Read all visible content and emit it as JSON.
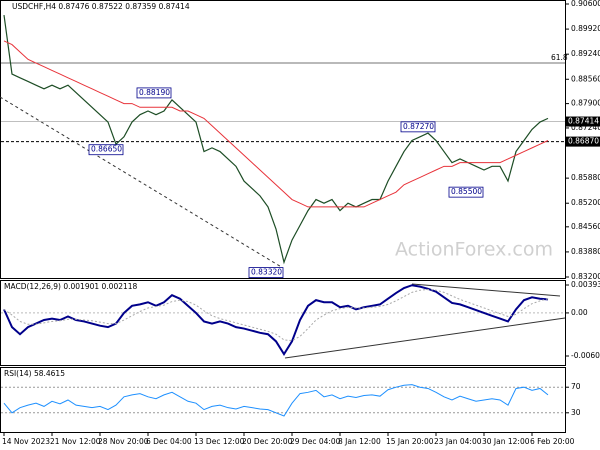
{
  "chart_data": [
    {
      "type": "line",
      "title": "USDCHF,H4 0.87476 0.87522 0.87359 0.87414",
      "watermark": "ActionForex.com",
      "ylim": [
        0.832,
        0.906
      ],
      "yticks": [
        {
          "value": 0.906,
          "label": "0.90600"
        },
        {
          "value": 0.8992,
          "label": "0.89920"
        },
        {
          "value": 0.8924,
          "label": "0.89240"
        },
        {
          "value": 0.8856,
          "label": "0.88560"
        },
        {
          "value": 0.879,
          "label": "0.87900"
        },
        {
          "value": 0.8724,
          "label": "0.87240"
        },
        {
          "value": 0.8588,
          "label": "0.85880"
        },
        {
          "value": 0.852,
          "label": "0.85200"
        },
        {
          "value": 0.8456,
          "label": "0.84560"
        },
        {
          "value": 0.8388,
          "label": "0.83880"
        },
        {
          "value": 0.832,
          "label": "0.83200"
        }
      ],
      "xticks": [
        {
          "value": 0,
          "label": "14 Nov 2023"
        },
        {
          "value": 6,
          "label": "21 Nov 12:00"
        },
        {
          "value": 12,
          "label": "28 Nov 20:00"
        },
        {
          "value": 18,
          "label": "6 Dec 04:00"
        },
        {
          "value": 24,
          "label": "13 Dec 12:00"
        },
        {
          "value": 30,
          "label": "20 Dec 20:00"
        },
        {
          "value": 36,
          "label": "29 Dec 04:00"
        },
        {
          "value": 42,
          "label": "8 Jan 12:00"
        },
        {
          "value": 48,
          "label": "15 Jan 20:00"
        },
        {
          "value": 54,
          "label": "23 Jan 04:00"
        },
        {
          "value": 60,
          "label": "30 Jan 12:00"
        },
        {
          "value": 66,
          "label": "6 Feb 20:00"
        }
      ],
      "current_price": {
        "value": 0.87414,
        "label": "0.87414"
      },
      "level": {
        "value": 0.8687,
        "label": "0.86870"
      },
      "fib": {
        "value": 0.89,
        "label": "61.8"
      },
      "annotations": [
        {
          "value": 0.8819,
          "label": "0.88190",
          "x": 21
        },
        {
          "value": 0.8665,
          "label": "0.86650",
          "x": 15
        },
        {
          "value": 0.8332,
          "label": "0.83320",
          "x": 35
        },
        {
          "value": 0.8727,
          "label": "0.87270",
          "x": 54
        },
        {
          "value": 0.855,
          "label": "0.85500",
          "x": 60
        }
      ],
      "series": [
        {
          "color": "#1d4d25",
          "width": 1.2,
          "values": [
            0.903,
            0.887,
            0.886,
            0.885,
            0.884,
            0.883,
            0.884,
            0.883,
            0.884,
            0.882,
            0.88,
            0.878,
            0.876,
            0.874,
            0.868,
            0.87,
            0.874,
            0.876,
            0.877,
            0.876,
            0.877,
            0.88,
            0.878,
            0.876,
            0.874,
            0.866,
            0.867,
            0.866,
            0.864,
            0.862,
            0.858,
            0.856,
            0.854,
            0.851,
            0.845,
            0.836,
            0.842,
            0.846,
            0.85,
            0.853,
            0.852,
            0.853,
            0.85,
            0.852,
            0.851,
            0.852,
            0.853,
            0.853,
            0.858,
            0.862,
            0.866,
            0.869,
            0.87,
            0.871,
            0.869,
            0.866,
            0.863,
            0.864,
            0.863,
            0.862,
            0.861,
            0.862,
            0.862,
            0.858,
            0.866,
            0.869,
            0.872,
            0.874,
            0.875
          ]
        },
        {
          "color": "#e8333a",
          "width": 1,
          "values": [
            0.896,
            0.895,
            0.893,
            0.891,
            0.89,
            0.889,
            0.888,
            0.887,
            0.886,
            0.885,
            0.884,
            0.883,
            0.882,
            0.881,
            0.88,
            0.879,
            0.879,
            0.878,
            0.878,
            0.878,
            0.878,
            0.878,
            0.877,
            0.877,
            0.876,
            0.875,
            0.873,
            0.871,
            0.869,
            0.867,
            0.865,
            0.863,
            0.861,
            0.859,
            0.857,
            0.855,
            0.853,
            0.852,
            0.851,
            0.851,
            0.851,
            0.851,
            0.851,
            0.851,
            0.851,
            0.851,
            0.852,
            0.853,
            0.854,
            0.855,
            0.857,
            0.858,
            0.859,
            0.86,
            0.861,
            0.862,
            0.862,
            0.863,
            0.863,
            0.863,
            0.863,
            0.863,
            0.863,
            0.864,
            0.865,
            0.866,
            0.867,
            0.868,
            0.869
          ]
        }
      ]
    },
    {
      "type": "line",
      "title": "MACD(12,26,9) 0.001901 0.002118",
      "ylim": [
        -0.006068,
        0.003933
      ],
      "yticks": [
        0.003933,
        {
          "value": 0,
          "label": "0.00"
        },
        -0.006068
      ],
      "series": [
        {
          "color": "#00008b",
          "width": 2,
          "values": [
            0.0005,
            -0.002,
            -0.003,
            -0.002,
            -0.0015,
            -0.001,
            -0.0008,
            -0.001,
            -0.0005,
            -0.001,
            -0.0012,
            -0.0015,
            -0.0018,
            -0.002,
            -0.0015,
            0,
            0.001,
            0.0012,
            0.0015,
            0.001,
            0.0015,
            0.0025,
            0.002,
            0.001,
            0,
            -0.0012,
            -0.0015,
            -0.0012,
            -0.0015,
            -0.002,
            -0.0022,
            -0.0025,
            -0.0028,
            -0.003,
            -0.004,
            -0.0058,
            -0.004,
            -0.001,
            0.001,
            0.0018,
            0.0015,
            0.0015,
            0.0008,
            0.001,
            0.0005,
            0.0008,
            0.001,
            0.0012,
            0.002,
            0.0028,
            0.0035,
            0.0039,
            0.0037,
            0.0034,
            0.003,
            0.0022,
            0.0014,
            0.0012,
            0.0008,
            0.0004,
            0,
            -0.0004,
            -0.0008,
            -0.0012,
            0.0005,
            0.0018,
            0.0022,
            0.002,
            0.0019
          ]
        },
        {
          "color": "#a9a9a9",
          "width": 1,
          "dash": true,
          "values": [
            0.0005,
            -0.0003,
            -0.0012,
            -0.0016,
            -0.0016,
            -0.0014,
            -0.0012,
            -0.0011,
            -0.0009,
            -0.0009,
            -0.001,
            -0.0011,
            -0.0013,
            -0.0015,
            -0.0015,
            -0.001,
            -0.0004,
            0.0002,
            0.0007,
            0.0009,
            0.0011,
            0.0016,
            0.0018,
            0.0016,
            0.0011,
            0.0003,
            -0.0004,
            -0.0008,
            -0.0011,
            -0.0014,
            -0.0017,
            -0.002,
            -0.0023,
            -0.0026,
            -0.003,
            -0.0038,
            -0.0039,
            -0.0033,
            -0.0022,
            -0.001,
            -0.0003,
            0.0003,
            0.0006,
            0.0008,
            0.0007,
            0.0007,
            0.0008,
            0.0009,
            0.0012,
            0.0017,
            0.0023,
            0.0029,
            0.0032,
            0.0033,
            0.0032,
            0.0029,
            0.0024,
            0.0019,
            0.0015,
            0.0011,
            0.0007,
            0.0003,
            -0.0001,
            -0.0005,
            -0.0002,
            0.0006,
            0.0013,
            0.0017,
            0.002
          ]
        }
      ]
    },
    {
      "type": "line",
      "title": "RSI(14) 58.4615",
      "ylim": [
        0,
        100
      ],
      "yticks": [
        30,
        70
      ],
      "series": [
        {
          "color": "#1e90ff",
          "width": 1,
          "values": [
            45,
            30,
            38,
            42,
            45,
            40,
            48,
            44,
            50,
            42,
            40,
            38,
            40,
            35,
            42,
            55,
            58,
            60,
            55,
            52,
            58,
            62,
            55,
            48,
            45,
            35,
            40,
            42,
            38,
            36,
            40,
            38,
            36,
            35,
            30,
            25,
            45,
            60,
            62,
            65,
            55,
            58,
            52,
            56,
            54,
            57,
            58,
            56,
            66,
            70,
            73,
            74,
            70,
            68,
            62,
            55,
            50,
            56,
            52,
            48,
            50,
            52,
            50,
            42,
            68,
            70,
            65,
            68,
            58
          ]
        }
      ]
    }
  ]
}
